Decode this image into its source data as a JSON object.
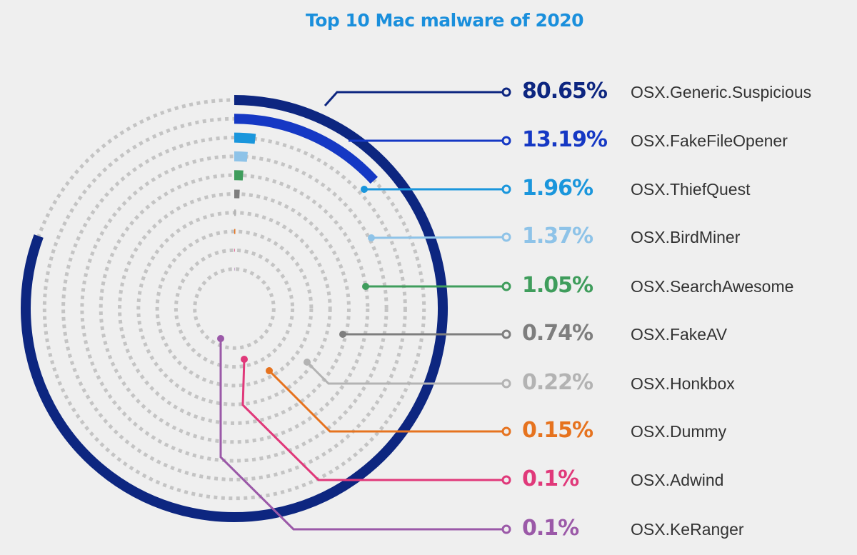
{
  "chart_data": {
    "type": "radial-bar",
    "title": "Top 10 Mac malware of 2020",
    "unit": "%",
    "max_value": 100,
    "categories": [
      "OSX.Generic.Suspicious",
      "OSX.FakeFileOpener",
      "OSX.ThiefQuest",
      "OSX.BirdMiner",
      "OSX.SearchAwesome",
      "OSX.FakeAV",
      "OSX.Honkbox",
      "OSX.Dummy",
      "OSX.Adwind",
      "OSX.KeRanger"
    ],
    "values": [
      80.65,
      13.19,
      1.96,
      1.37,
      1.05,
      0.74,
      0.22,
      0.15,
      0.1,
      0.1
    ],
    "labels": [
      "80.65%",
      "13.19%",
      "1.96%",
      "1.37%",
      "1.05%",
      "0.74%",
      "0.22%",
      "0.15%",
      "0.1%",
      "0.1%"
    ],
    "colors": [
      "#0d2680",
      "#1538c4",
      "#1a96dc",
      "#8ec3e8",
      "#3f9d5c",
      "#7e7e7e",
      "#b3b3b3",
      "#e6731f",
      "#e0397a",
      "#9b59a8"
    ],
    "legend": "right"
  }
}
